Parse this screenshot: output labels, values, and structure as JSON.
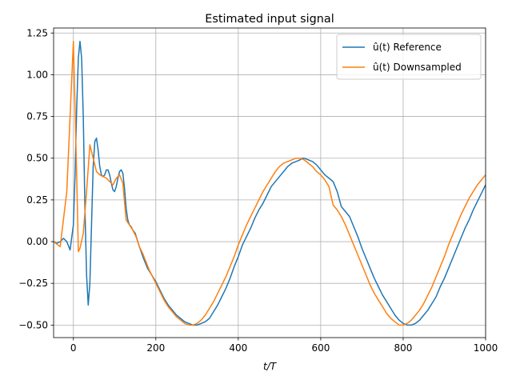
{
  "chart_data": {
    "type": "line",
    "title": "Estimated input signal",
    "xlabel": "t/T",
    "ylabel": "",
    "xlim": [
      -48,
      1000
    ],
    "ylim": [
      -0.575,
      1.28
    ],
    "xticks": [
      0,
      200,
      400,
      600,
      800,
      1000
    ],
    "yticks": [
      -0.5,
      -0.25,
      0.0,
      0.25,
      0.5,
      0.75,
      1.0,
      1.25
    ],
    "xtick_labels": [
      "0",
      "200",
      "400",
      "600",
      "800",
      "1000"
    ],
    "ytick_labels": [
      "−0.50",
      "−0.25",
      "0.00",
      "0.25",
      "0.50",
      "0.75",
      "1.00",
      "1.25"
    ],
    "grid": true,
    "legend_position": "top-right",
    "series": [
      {
        "name": "û(t) Reference",
        "color": "#1f77b4",
        "x": [
          -48,
          -40,
          -32,
          -24,
          -16,
          -8,
          0,
          4,
          8,
          12,
          16,
          20,
          24,
          28,
          32,
          36,
          40,
          44,
          48,
          52,
          56,
          60,
          64,
          68,
          72,
          76,
          80,
          84,
          88,
          92,
          96,
          100,
          104,
          108,
          112,
          116,
          120,
          124,
          128,
          132,
          136,
          140,
          144,
          150,
          160,
          170,
          180,
          190,
          200,
          210,
          220,
          230,
          240,
          250,
          260,
          270,
          280,
          290,
          300,
          310,
          320,
          330,
          340,
          350,
          360,
          370,
          380,
          390,
          400,
          410,
          420,
          430,
          440,
          450,
          460,
          470,
          480,
          490,
          500,
          510,
          520,
          530,
          540,
          550,
          555,
          560,
          570,
          580,
          590,
          600,
          610,
          620,
          630,
          640,
          650,
          660,
          670,
          680,
          690,
          700,
          710,
          720,
          730,
          740,
          750,
          760,
          770,
          780,
          790,
          800,
          810,
          820,
          830,
          840,
          850,
          860,
          870,
          880,
          890,
          900,
          910,
          920,
          930,
          940,
          950,
          960,
          970,
          980,
          990,
          1000
        ],
        "y": [
          0.0,
          -0.01,
          0.0,
          0.02,
          0.0,
          -0.05,
          0.1,
          0.4,
          0.8,
          1.1,
          1.2,
          1.1,
          0.75,
          0.2,
          -0.2,
          -0.38,
          -0.25,
          0.1,
          0.45,
          0.6,
          0.62,
          0.55,
          0.45,
          0.4,
          0.39,
          0.4,
          0.43,
          0.43,
          0.4,
          0.35,
          0.31,
          0.3,
          0.33,
          0.38,
          0.42,
          0.43,
          0.41,
          0.32,
          0.2,
          0.13,
          0.1,
          0.09,
          0.07,
          0.05,
          -0.03,
          -0.1,
          -0.16,
          -0.2,
          -0.24,
          -0.29,
          -0.34,
          -0.38,
          -0.41,
          -0.44,
          -0.46,
          -0.48,
          -0.49,
          -0.5,
          -0.5,
          -0.49,
          -0.48,
          -0.46,
          -0.42,
          -0.38,
          -0.33,
          -0.28,
          -0.22,
          -0.15,
          -0.09,
          -0.02,
          0.03,
          0.08,
          0.14,
          0.19,
          0.23,
          0.28,
          0.33,
          0.36,
          0.39,
          0.42,
          0.45,
          0.47,
          0.48,
          0.49,
          0.5,
          0.5,
          0.49,
          0.48,
          0.46,
          0.43,
          0.4,
          0.38,
          0.36,
          0.3,
          0.21,
          0.18,
          0.15,
          0.09,
          0.03,
          -0.04,
          -0.1,
          -0.16,
          -0.22,
          -0.27,
          -0.32,
          -0.36,
          -0.4,
          -0.44,
          -0.47,
          -0.49,
          -0.5,
          -0.5,
          -0.49,
          -0.47,
          -0.44,
          -0.41,
          -0.37,
          -0.33,
          -0.27,
          -0.22,
          -0.16,
          -0.1,
          -0.04,
          0.02,
          0.08,
          0.13,
          0.19,
          0.24,
          0.29,
          0.34
        ]
      },
      {
        "name": "û(t) Downsampled",
        "color": "#ff7f0e",
        "x": [
          -48,
          -32,
          -16,
          -8,
          0,
          4,
          8,
          12,
          16,
          24,
          32,
          40,
          48,
          56,
          64,
          72,
          80,
          88,
          96,
          104,
          112,
          120,
          128,
          136,
          144,
          152,
          160,
          168,
          176,
          184,
          192,
          200,
          210,
          220,
          230,
          240,
          250,
          260,
          270,
          280,
          290,
          300,
          310,
          320,
          330,
          340,
          350,
          360,
          370,
          380,
          390,
          400,
          410,
          420,
          430,
          440,
          450,
          460,
          470,
          480,
          490,
          500,
          510,
          520,
          530,
          540,
          550,
          560,
          570,
          580,
          590,
          600,
          610,
          620,
          630,
          640,
          650,
          660,
          670,
          680,
          690,
          700,
          710,
          720,
          730,
          740,
          750,
          760,
          770,
          780,
          790,
          800,
          810,
          820,
          830,
          840,
          850,
          860,
          870,
          880,
          890,
          900,
          910,
          920,
          930,
          940,
          950,
          960,
          970,
          980,
          990,
          1000
        ],
        "y": [
          0.0,
          -0.03,
          0.3,
          0.75,
          1.2,
          0.8,
          0.4,
          -0.06,
          -0.04,
          0.05,
          0.3,
          0.58,
          0.5,
          0.42,
          0.4,
          0.39,
          0.38,
          0.36,
          0.34,
          0.38,
          0.4,
          0.35,
          0.13,
          0.1,
          0.07,
          0.03,
          -0.03,
          -0.07,
          -0.12,
          -0.17,
          -0.21,
          -0.25,
          -0.3,
          -0.35,
          -0.39,
          -0.42,
          -0.45,
          -0.47,
          -0.49,
          -0.5,
          -0.5,
          -0.49,
          -0.47,
          -0.44,
          -0.4,
          -0.36,
          -0.31,
          -0.26,
          -0.21,
          -0.15,
          -0.09,
          -0.02,
          0.04,
          0.1,
          0.15,
          0.2,
          0.25,
          0.3,
          0.34,
          0.38,
          0.42,
          0.45,
          0.47,
          0.48,
          0.49,
          0.5,
          0.5,
          0.49,
          0.47,
          0.45,
          0.42,
          0.4,
          0.37,
          0.33,
          0.22,
          0.19,
          0.15,
          0.1,
          0.04,
          -0.02,
          -0.08,
          -0.14,
          -0.2,
          -0.26,
          -0.31,
          -0.35,
          -0.39,
          -0.43,
          -0.46,
          -0.48,
          -0.5,
          -0.5,
          -0.49,
          -0.47,
          -0.44,
          -0.41,
          -0.37,
          -0.32,
          -0.27,
          -0.21,
          -0.15,
          -0.09,
          -0.02,
          0.04,
          0.1,
          0.16,
          0.21,
          0.26,
          0.3,
          0.34,
          0.37,
          0.4
        ]
      }
    ]
  }
}
